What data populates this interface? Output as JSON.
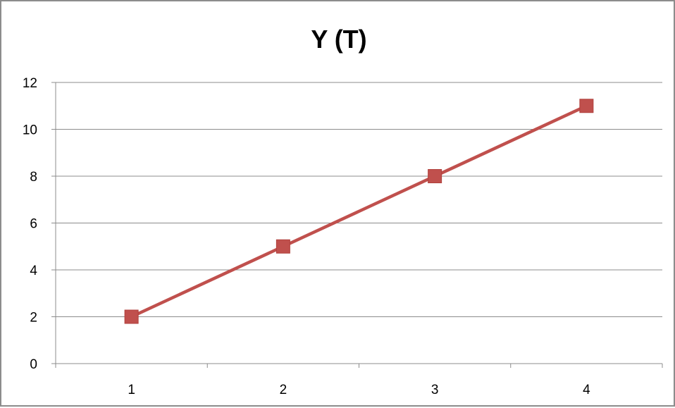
{
  "chart_data": {
    "type": "line",
    "title": "Y (T)",
    "xlabel": "",
    "ylabel": "",
    "categories": [
      "1",
      "2",
      "3",
      "4"
    ],
    "series": [
      {
        "values": [
          2,
          5,
          8,
          11
        ],
        "color": "#c0504d",
        "marker": "square"
      }
    ],
    "ylim": [
      0,
      12
    ],
    "yticks": [
      0,
      2,
      4,
      6,
      8,
      10,
      12
    ],
    "grid": "horizontal",
    "legend": "none",
    "colors": {
      "series": "#c0504d",
      "gridline": "#8c8c8c",
      "axis": "#8c8c8c",
      "frame": "#8c8c8c"
    }
  }
}
